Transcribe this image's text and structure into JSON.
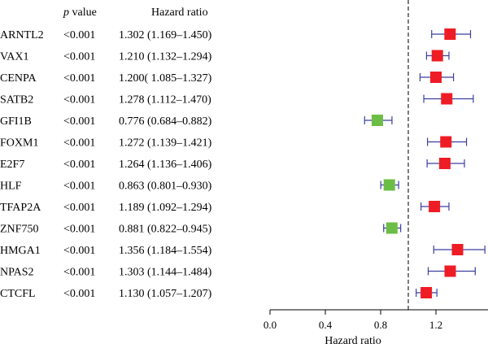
{
  "header": {
    "pvalue_prefix": "p",
    "pvalue_suffix": " value",
    "hazard_ratio": "Hazard ratio"
  },
  "colors": {
    "risk": "#ee1c25",
    "protective": "#6cbd45",
    "ci": "#3b3fa0",
    "reference_line": "#444444",
    "axis": "#000000"
  },
  "chart_data": {
    "type": "forest",
    "xlabel": "Hazard ratio",
    "xlim": [
      0.0,
      1.4
    ],
    "xticks": [
      0.0,
      0.4,
      0.8,
      1.2
    ],
    "xtick_labels": [
      "0.0",
      "0.4",
      "0.8",
      "1.2"
    ],
    "reference_value": 1.0,
    "rows": [
      {
        "gene": "ARNTL2",
        "p": "<0.001",
        "hr_text": "1.302 (1.169–1.450)",
        "hr": 1.302,
        "lo": 1.169,
        "hi": 1.45
      },
      {
        "gene": "VAX1",
        "p": "<0.001",
        "hr_text": "1.210 (1.132–1.294)",
        "hr": 1.21,
        "lo": 1.132,
        "hi": 1.294
      },
      {
        "gene": "CENPA",
        "p": "<0.001",
        "hr_text": "1.200( 1.085–1.327)",
        "hr": 1.2,
        "lo": 1.085,
        "hi": 1.327
      },
      {
        "gene": "SATB2",
        "p": "<0.001",
        "hr_text": "1.278 (1.112–1.470)",
        "hr": 1.278,
        "lo": 1.112,
        "hi": 1.47
      },
      {
        "gene": "GFI1B",
        "p": "<0.001",
        "hr_text": "0.776 (0.684–0.882)",
        "hr": 0.776,
        "lo": 0.684,
        "hi": 0.882
      },
      {
        "gene": "FOXM1",
        "p": "<0.001",
        "hr_text": "1.272 (1.139–1.421)",
        "hr": 1.272,
        "lo": 1.139,
        "hi": 1.421
      },
      {
        "gene": "E2F7",
        "p": "<0.001",
        "hr_text": "1.264 (1.136–1.406)",
        "hr": 1.264,
        "lo": 1.136,
        "hi": 1.406
      },
      {
        "gene": "HLF",
        "p": "<0.001",
        "hr_text": "0.863 (0.801–0.930)",
        "hr": 0.863,
        "lo": 0.801,
        "hi": 0.93
      },
      {
        "gene": "TFAP2A",
        "p": "<0.001",
        "hr_text": "1.189 (1.092–1.294)",
        "hr": 1.189,
        "lo": 1.092,
        "hi": 1.294
      },
      {
        "gene": "ZNF750",
        "p": "<0.001",
        "hr_text": "0.881 (0.822–0.945)",
        "hr": 0.881,
        "lo": 0.822,
        "hi": 0.945
      },
      {
        "gene": "HMGA1",
        "p": "<0.001",
        "hr_text": "1.356 (1.184–1.554)",
        "hr": 1.356,
        "lo": 1.184,
        "hi": 1.554
      },
      {
        "gene": "NPAS2",
        "p": "<0.001",
        "hr_text": "1.303 (1.144–1.484)",
        "hr": 1.303,
        "lo": 1.144,
        "hi": 1.484
      },
      {
        "gene": "CTCFL",
        "p": "<0.001",
        "hr_text": "1.130 (1.057–1.207)",
        "hr": 1.13,
        "lo": 1.057,
        "hi": 1.207
      }
    ]
  }
}
